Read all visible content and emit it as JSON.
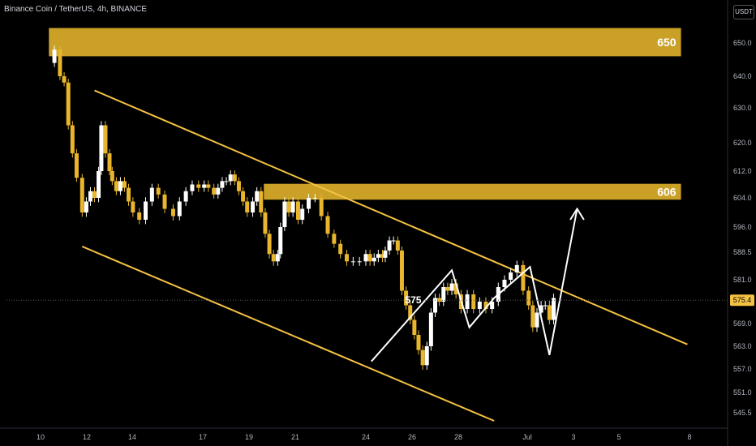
{
  "header": {
    "title": "Binance Coin / TetherUS, 4h, BINANCE",
    "currency": "USDT"
  },
  "colors": {
    "background": "#000000",
    "zone": "#e0b22a",
    "channel": "#f5c242",
    "candle_up": "#ffffff",
    "candle_down": "#e8b52c",
    "axis_text": "#b2b5be",
    "price_tag": "#f5c242",
    "projection": "#ffffff"
  },
  "chart_data": {
    "type": "candlestick",
    "ylim": [
      541,
      659
    ],
    "y_ticks": [
      "650.0",
      "640.0",
      "630.0",
      "620.0",
      "612.0",
      "604.0",
      "596.0",
      "588.5",
      "581.0",
      "569.0",
      "563.0",
      "557.0",
      "551.0",
      "545.5"
    ],
    "x_ticks": [
      "10",
      "12",
      "14",
      "17",
      "19",
      "21",
      "24",
      "26",
      "28",
      "Jul",
      "3",
      "5",
      "8"
    ],
    "current_price": "575.4",
    "zones": [
      {
        "label": "650",
        "low": 646,
        "high": 654.5,
        "x_from": 0.3,
        "x_to": 19.8
      },
      {
        "label": "606",
        "low": 603.5,
        "high": 608.2,
        "x_from": 7.2,
        "x_to": 19.8
      }
    ],
    "channel_upper": [
      [
        1.95,
        635.5
      ],
      [
        19.95,
        563.5
      ]
    ],
    "channel_lower": [
      [
        1.5,
        590.2
      ],
      [
        14.2,
        543.3
      ]
    ],
    "pattern_annotation": "575",
    "projection_path": [
      [
        10.2,
        559
      ],
      [
        13.1,
        583.6
      ],
      [
        13.6,
        568
      ],
      [
        14.2,
        576
      ],
      [
        15.1,
        584.5
      ],
      [
        15.8,
        560.7
      ],
      [
        16.8,
        601
      ],
      [
        16.55,
        598
      ],
      [
        16.8,
        601
      ],
      [
        17.05,
        598
      ]
    ],
    "price_path": [
      [
        0.4,
        644
      ],
      [
        0.5,
        648
      ],
      [
        0.7,
        640
      ],
      [
        0.85,
        638
      ],
      [
        1.0,
        625
      ],
      [
        1.15,
        617
      ],
      [
        1.3,
        610
      ],
      [
        1.5,
        600
      ],
      [
        1.65,
        603
      ],
      [
        1.8,
        606
      ],
      [
        1.95,
        604
      ],
      [
        2.1,
        612
      ],
      [
        2.2,
        625
      ],
      [
        2.35,
        617
      ],
      [
        2.5,
        612
      ],
      [
        2.6,
        609
      ],
      [
        2.75,
        606
      ],
      [
        2.9,
        609
      ],
      [
        3.05,
        607
      ],
      [
        3.2,
        603
      ],
      [
        3.35,
        600
      ],
      [
        3.5,
        598
      ],
      [
        3.65,
        603
      ],
      [
        3.8,
        607
      ],
      [
        3.95,
        605
      ],
      [
        4.1,
        601
      ],
      [
        4.3,
        599
      ],
      [
        4.45,
        603
      ],
      [
        4.6,
        606
      ],
      [
        4.75,
        608
      ],
      [
        4.9,
        607
      ],
      [
        5.05,
        608
      ],
      [
        5.2,
        607
      ],
      [
        5.4,
        605
      ],
      [
        5.55,
        607
      ],
      [
        5.7,
        609
      ],
      [
        5.85,
        609
      ],
      [
        6.0,
        611
      ],
      [
        6.15,
        609
      ],
      [
        6.3,
        606
      ],
      [
        6.45,
        603
      ],
      [
        6.6,
        600
      ],
      [
        6.8,
        603
      ],
      [
        6.95,
        606
      ],
      [
        7.1,
        600
      ],
      [
        7.25,
        594
      ],
      [
        7.4,
        588
      ],
      [
        7.55,
        586
      ],
      [
        7.7,
        588
      ],
      [
        7.8,
        596
      ],
      [
        7.95,
        603
      ],
      [
        8.1,
        600
      ],
      [
        8.25,
        603
      ],
      [
        8.4,
        598
      ],
      [
        8.5,
        601
      ],
      [
        8.65,
        604
      ],
      [
        8.8,
        604
      ],
      [
        8.95,
        599
      ],
      [
        9.1,
        594
      ],
      [
        9.25,
        591
      ],
      [
        9.4,
        588
      ],
      [
        9.55,
        586
      ],
      [
        9.7,
        586
      ],
      [
        9.85,
        586
      ],
      [
        10.0,
        588
      ],
      [
        10.15,
        586
      ],
      [
        10.3,
        587
      ],
      [
        10.45,
        588
      ],
      [
        10.6,
        587
      ],
      [
        10.7,
        589
      ],
      [
        10.85,
        592
      ],
      [
        11.0,
        592
      ],
      [
        11.15,
        589
      ],
      [
        11.3,
        578
      ],
      [
        11.45,
        574
      ],
      [
        11.6,
        570
      ],
      [
        11.75,
        566
      ],
      [
        11.9,
        562
      ],
      [
        12.05,
        558
      ],
      [
        12.2,
        563
      ],
      [
        12.35,
        572
      ],
      [
        12.5,
        576
      ],
      [
        12.65,
        575
      ],
      [
        12.8,
        579
      ],
      [
        12.95,
        578
      ],
      [
        13.1,
        580
      ],
      [
        13.25,
        577
      ],
      [
        13.4,
        573
      ],
      [
        13.55,
        577
      ],
      [
        13.7,
        573
      ],
      [
        13.85,
        575
      ],
      [
        14.0,
        573
      ],
      [
        14.15,
        575
      ],
      [
        14.3,
        579
      ],
      [
        14.45,
        581
      ],
      [
        14.6,
        583
      ],
      [
        14.75,
        585
      ],
      [
        14.9,
        578
      ],
      [
        15.05,
        574
      ],
      [
        15.2,
        568
      ],
      [
        15.35,
        572
      ],
      [
        15.5,
        574
      ],
      [
        15.65,
        574
      ],
      [
        15.8,
        570
      ],
      [
        15.95,
        576
      ]
    ]
  }
}
